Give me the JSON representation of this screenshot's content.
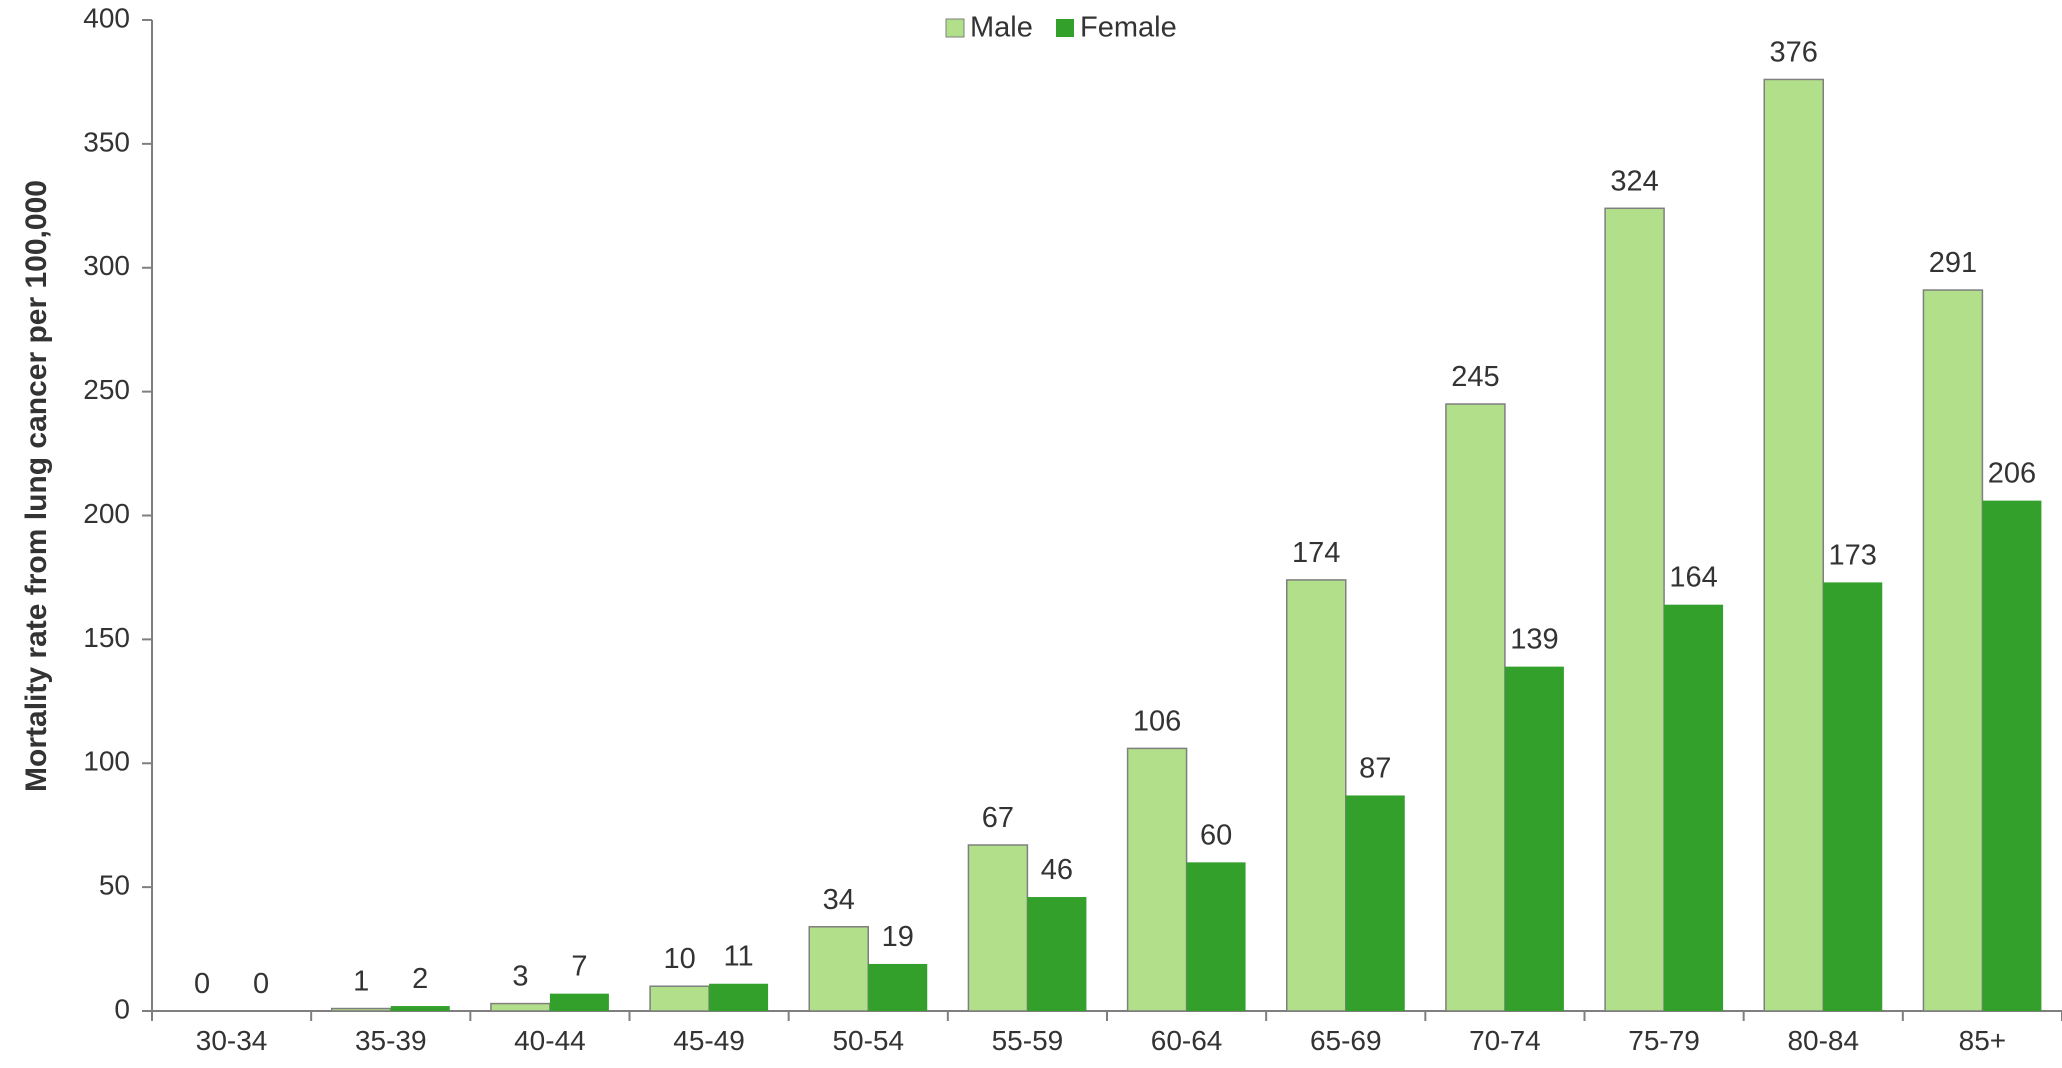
{
  "chart_data": {
    "type": "bar",
    "title": "",
    "xlabel": "",
    "ylabel": "Mortality rate from lung cancer per 100,000",
    "ylim": [
      0,
      400
    ],
    "yticks": [
      0,
      50,
      100,
      150,
      200,
      250,
      300,
      350,
      400
    ],
    "grid": false,
    "legend_position": "top-center",
    "categories": [
      "30-34",
      "35-39",
      "40-44",
      "45-49",
      "50-54",
      "55-59",
      "60-64",
      "65-69",
      "70-74",
      "75-79",
      "80-84",
      "85+"
    ],
    "series": [
      {
        "name": "Male",
        "color": "#b2df8a",
        "values": [
          0,
          1,
          3,
          10,
          34,
          67,
          106,
          174,
          245,
          324,
          376,
          291
        ]
      },
      {
        "name": "Female",
        "color": "#33a02c",
        "values": [
          0,
          2,
          7,
          11,
          19,
          46,
          60,
          87,
          139,
          164,
          173,
          206
        ]
      }
    ]
  }
}
